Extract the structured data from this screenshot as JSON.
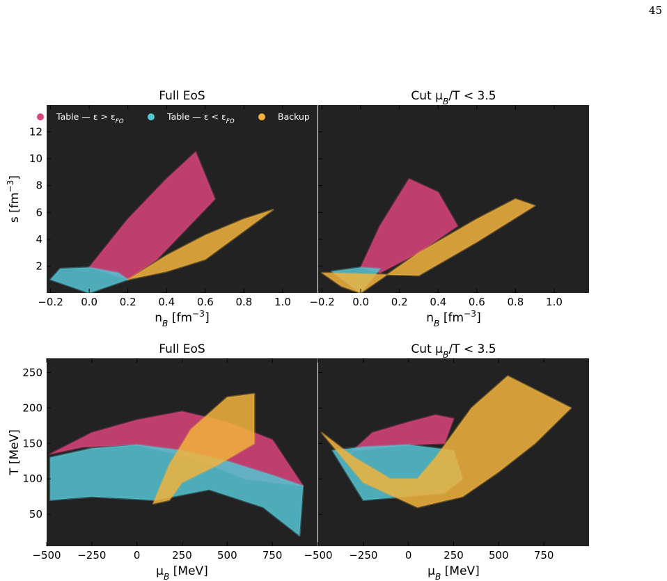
{
  "page_number": "45",
  "colors": {
    "background": "#222222",
    "table_above_fo": "#d9447a",
    "table_below_fo": "#55c4d2",
    "backup": "#f2b33d"
  },
  "legend": {
    "placement": "top",
    "entries": [
      {
        "text": "Table — ε > ε",
        "sub": "FO",
        "color_key": "table_above_fo"
      },
      {
        "text": "Table — ε < ε",
        "sub": "FO",
        "color_key": "table_below_fo"
      },
      {
        "text": "Backup",
        "sub": "",
        "color_key": "backup"
      }
    ]
  },
  "chart_data": [
    {
      "id": "top-left",
      "type": "scatter",
      "title": "Full EoS",
      "xlabel": "n_B [fm^-3]",
      "ylabel": "s [fm^-3]",
      "xlim": [
        -0.22,
        1.18
      ],
      "ylim": [
        0,
        14
      ],
      "xticks": [
        -0.2,
        0.0,
        0.2,
        0.4,
        0.6,
        0.8,
        1.0
      ],
      "xtick_labels": [
        "−0.2",
        "0.0",
        "0.2",
        "0.4",
        "0.6",
        "0.8",
        "1.0"
      ],
      "yticks": [
        2,
        4,
        6,
        8,
        10,
        12
      ],
      "ytick_labels": [
        "2",
        "4",
        "6",
        "8",
        "10",
        "12"
      ],
      "grid": false,
      "series": [
        {
          "name": "Table — ε > ε_FO",
          "color_key": "table_above_fo",
          "points": [
            [
              0.0,
              1.9
            ],
            [
              0.2,
              5.5
            ],
            [
              0.4,
              8.5
            ],
            [
              0.55,
              10.5
            ],
            [
              0.65,
              7.0
            ],
            [
              0.35,
              2.5
            ],
            [
              0.2,
              1.0
            ]
          ]
        },
        {
          "name": "Table — ε < ε_FO",
          "color_key": "table_below_fo",
          "points": [
            [
              -0.2,
              1.0
            ],
            [
              -0.15,
              1.8
            ],
            [
              0.0,
              1.9
            ],
            [
              0.15,
              1.5
            ],
            [
              0.2,
              1.0
            ],
            [
              0.0,
              0.0
            ]
          ]
        },
        {
          "name": "Backup",
          "color_key": "backup",
          "points": [
            [
              0.2,
              1.0
            ],
            [
              0.4,
              2.8
            ],
            [
              0.6,
              4.3
            ],
            [
              0.8,
              5.5
            ],
            [
              0.95,
              6.2
            ],
            [
              0.6,
              2.5
            ],
            [
              0.4,
              1.6
            ]
          ]
        }
      ]
    },
    {
      "id": "top-right",
      "type": "scatter",
      "title": "Cut μ_B/T < 3.5",
      "xlabel": "n_B [fm^-3]",
      "ylabel": "",
      "xlim": [
        -0.22,
        1.18
      ],
      "ylim": [
        0,
        14
      ],
      "xticks": [
        -0.2,
        0.0,
        0.2,
        0.4,
        0.6,
        0.8,
        1.0
      ],
      "xtick_labels": [
        "−0.2",
        "0.0",
        "0.2",
        "0.4",
        "0.6",
        "0.8",
        "1.0"
      ],
      "yticks": [
        2,
        4,
        6,
        8,
        10,
        12
      ],
      "ytick_labels": [],
      "grid": false,
      "series": [
        {
          "name": "Table — ε > ε_FO",
          "color_key": "table_above_fo",
          "points": [
            [
              0.0,
              1.9
            ],
            [
              0.1,
              5.0
            ],
            [
              0.25,
              8.5
            ],
            [
              0.4,
              7.5
            ],
            [
              0.5,
              5.0
            ],
            [
              0.3,
              3.0
            ],
            [
              0.1,
              1.5
            ]
          ]
        },
        {
          "name": "Table — ε < ε_FO",
          "color_key": "table_below_fo",
          "points": [
            [
              -0.15,
              1.6
            ],
            [
              0.0,
              1.9
            ],
            [
              0.1,
              1.8
            ],
            [
              0.0,
              0.0
            ]
          ]
        },
        {
          "name": "Backup",
          "color_key": "backup",
          "points": [
            [
              0.0,
              0.0
            ],
            [
              0.3,
              3.0
            ],
            [
              0.6,
              5.5
            ],
            [
              0.8,
              7.0
            ],
            [
              0.9,
              6.5
            ],
            [
              0.6,
              3.8
            ],
            [
              0.3,
              1.3
            ],
            [
              -0.2,
              1.5
            ],
            [
              -0.1,
              0.5
            ]
          ]
        }
      ]
    },
    {
      "id": "bottom-left",
      "type": "scatter",
      "title": "Full EoS",
      "xlabel": "μ_B [MeV]",
      "ylabel": "T [MeV]",
      "xlim": [
        -500,
        1000
      ],
      "ylim": [
        5,
        270
      ],
      "xticks": [
        -500,
        -250,
        0,
        250,
        500,
        750
      ],
      "xtick_labels": [
        "−500",
        "−250",
        "0",
        "250",
        "500",
        "750"
      ],
      "yticks": [
        50,
        100,
        150,
        200,
        250
      ],
      "ytick_labels": [
        "50",
        "100",
        "150",
        "200",
        "250"
      ],
      "grid": false,
      "series": [
        {
          "name": "Table — ε > ε_FO",
          "color_key": "table_above_fo",
          "points": [
            [
              -480,
              135
            ],
            [
              -250,
              165
            ],
            [
              0,
              183
            ],
            [
              250,
              195
            ],
            [
              500,
              180
            ],
            [
              750,
              155
            ],
            [
              920,
              90
            ],
            [
              600,
              100
            ],
            [
              300,
              130
            ],
            [
              0,
              148
            ],
            [
              -300,
              145
            ]
          ]
        },
        {
          "name": "Table — ε < ε_FO",
          "color_key": "table_below_fo",
          "points": [
            [
              -480,
              70
            ],
            [
              -480,
              130
            ],
            [
              -250,
              143
            ],
            [
              0,
              148
            ],
            [
              250,
              140
            ],
            [
              500,
              125
            ],
            [
              750,
              105
            ],
            [
              920,
              90
            ],
            [
              900,
              20
            ],
            [
              700,
              60
            ],
            [
              400,
              85
            ],
            [
              100,
              70
            ],
            [
              -250,
              75
            ]
          ]
        },
        {
          "name": "Backup",
          "color_key": "backup",
          "points": [
            [
              90,
              65
            ],
            [
              180,
              120
            ],
            [
              300,
              170
            ],
            [
              500,
              215
            ],
            [
              650,
              220
            ],
            [
              650,
              150
            ],
            [
              450,
              120
            ],
            [
              250,
              95
            ],
            [
              180,
              70
            ]
          ]
        }
      ]
    },
    {
      "id": "bottom-right",
      "type": "scatter",
      "title": "Cut μ_B/T < 3.5",
      "xlabel": "μ_B [MeV]",
      "ylabel": "",
      "xlim": [
        -500,
        1000
      ],
      "ylim": [
        5,
        270
      ],
      "xticks": [
        -500,
        -250,
        0,
        250,
        500,
        750
      ],
      "xtick_labels": [
        "−500",
        "−250",
        "0",
        "250",
        "500",
        "750"
      ],
      "yticks": [
        50,
        100,
        150,
        200,
        250
      ],
      "ytick_labels": [],
      "grid": false,
      "series": [
        {
          "name": "Table — ε > ε_FO",
          "color_key": "table_above_fo",
          "points": [
            [
              -350,
              130
            ],
            [
              -200,
              165
            ],
            [
              0,
              180
            ],
            [
              150,
              190
            ],
            [
              250,
              185
            ],
            [
              200,
              150
            ],
            [
              0,
              148
            ],
            [
              -300,
              140
            ]
          ]
        },
        {
          "name": "Table — ε < ε_FO",
          "color_key": "table_below_fo",
          "points": [
            [
              -420,
              140
            ],
            [
              -250,
              145
            ],
            [
              0,
              148
            ],
            [
              250,
              140
            ],
            [
              300,
              100
            ],
            [
              200,
              80
            ],
            [
              -250,
              70
            ]
          ]
        },
        {
          "name": "Backup",
          "color_key": "backup",
          "points": [
            [
              -480,
              165
            ],
            [
              -300,
              130
            ],
            [
              -100,
              100
            ],
            [
              50,
              100
            ],
            [
              150,
              130
            ],
            [
              350,
              200
            ],
            [
              550,
              245
            ],
            [
              900,
              200
            ],
            [
              700,
              150
            ],
            [
              500,
              110
            ],
            [
              300,
              75
            ],
            [
              50,
              60
            ],
            [
              -250,
              95
            ]
          ]
        }
      ]
    }
  ]
}
